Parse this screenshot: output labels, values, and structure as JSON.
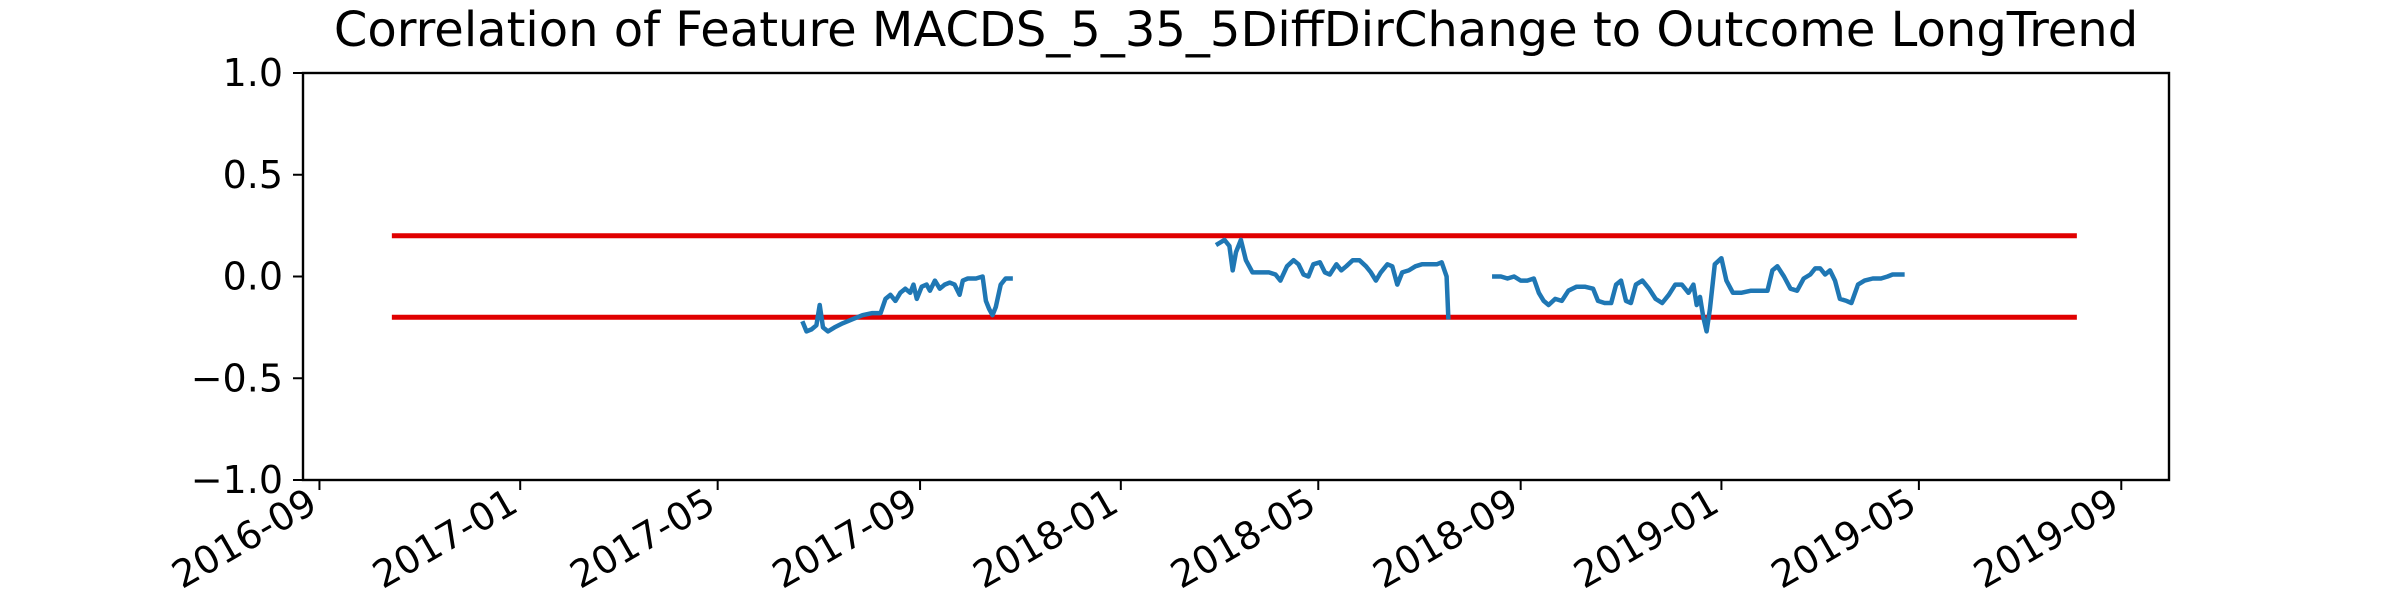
{
  "chart_data": {
    "type": "line",
    "title": "Correlation of Feature MACDS_5_35_5DiffDirChange to Outcome LongTrend",
    "xlabel": "",
    "ylabel": "",
    "ylim": [
      -1.0,
      1.0
    ],
    "xlim": [
      "2016-08-22",
      "2019-09-30"
    ],
    "y_ticks": [
      "1.0",
      "0.5",
      "0.0",
      "−0.5",
      "−1.0"
    ],
    "y_tick_values": [
      1.0,
      0.5,
      0.0,
      -0.5,
      -1.0
    ],
    "x_ticks": [
      "2016-09",
      "2017-01",
      "2017-05",
      "2017-09",
      "2018-01",
      "2018-05",
      "2018-09",
      "2019-01",
      "2019-05",
      "2019-09"
    ],
    "x_tick_dates": [
      "2016-09-01",
      "2017-01-01",
      "2017-05-01",
      "2017-09-01",
      "2018-01-01",
      "2018-05-01",
      "2018-09-01",
      "2019-01-01",
      "2019-05-01",
      "2019-09-01"
    ],
    "grid": false,
    "colors": {
      "series": "#1f77b4",
      "threshold": "#e00000"
    },
    "thresholds": [
      {
        "y": 0.2,
        "x_start": "2016-10-15",
        "x_end": "2019-08-05"
      },
      {
        "y": -0.2,
        "x_start": "2016-10-15",
        "x_end": "2019-08-05"
      }
    ],
    "series": [
      {
        "segments": [
          [
            [
              "2017-06-22",
              -0.23
            ],
            [
              "2017-06-24",
              -0.27
            ],
            [
              "2017-06-27",
              -0.26
            ],
            [
              "2017-06-30",
              -0.24
            ],
            [
              "2017-07-02",
              -0.14
            ],
            [
              "2017-07-04",
              -0.25
            ],
            [
              "2017-07-07",
              -0.27
            ],
            [
              "2017-07-11",
              -0.25
            ],
            [
              "2017-07-16",
              -0.23
            ],
            [
              "2017-07-22",
              -0.21
            ],
            [
              "2017-07-28",
              -0.19
            ],
            [
              "2017-08-03",
              -0.18
            ],
            [
              "2017-08-08",
              -0.18
            ],
            [
              "2017-08-11",
              -0.11
            ],
            [
              "2017-08-14",
              -0.09
            ],
            [
              "2017-08-17",
              -0.12
            ],
            [
              "2017-08-20",
              -0.08
            ],
            [
              "2017-08-23",
              -0.06
            ],
            [
              "2017-08-26",
              -0.08
            ],
            [
              "2017-08-28",
              -0.04
            ],
            [
              "2017-08-30",
              -0.11
            ],
            [
              "2017-09-02",
              -0.05
            ],
            [
              "2017-09-05",
              -0.04
            ],
            [
              "2017-09-07",
              -0.07
            ],
            [
              "2017-09-10",
              -0.02
            ],
            [
              "2017-09-13",
              -0.06
            ],
            [
              "2017-09-16",
              -0.04
            ],
            [
              "2017-09-19",
              -0.03
            ],
            [
              "2017-09-22",
              -0.04
            ],
            [
              "2017-09-25",
              -0.09
            ],
            [
              "2017-09-27",
              -0.02
            ],
            [
              "2017-09-30",
              -0.01
            ],
            [
              "2017-10-05",
              -0.01
            ],
            [
              "2017-10-09",
              0.0
            ],
            [
              "2017-10-11",
              -0.12
            ],
            [
              "2017-10-13",
              -0.16
            ],
            [
              "2017-10-15",
              -0.19
            ],
            [
              "2017-10-17",
              -0.15
            ],
            [
              "2017-10-20",
              -0.04
            ],
            [
              "2017-10-23",
              -0.01
            ],
            [
              "2017-10-26",
              -0.01
            ]
          ],
          [
            [
              "2018-03-01",
              0.16
            ],
            [
              "2018-03-05",
              0.18
            ],
            [
              "2018-03-08",
              0.15
            ],
            [
              "2018-03-10",
              0.03
            ],
            [
              "2018-03-12",
              0.12
            ],
            [
              "2018-03-15",
              0.18
            ],
            [
              "2018-03-18",
              0.08
            ],
            [
              "2018-03-22",
              0.02
            ],
            [
              "2018-03-27",
              0.02
            ],
            [
              "2018-04-01",
              0.02
            ],
            [
              "2018-04-05",
              0.01
            ],
            [
              "2018-04-08",
              -0.02
            ],
            [
              "2018-04-12",
              0.05
            ],
            [
              "2018-04-16",
              0.08
            ],
            [
              "2018-04-19",
              0.06
            ],
            [
              "2018-04-22",
              0.01
            ],
            [
              "2018-04-25",
              0.0
            ],
            [
              "2018-04-28",
              0.06
            ],
            [
              "2018-05-02",
              0.07
            ],
            [
              "2018-05-05",
              0.02
            ],
            [
              "2018-05-08",
              0.01
            ],
            [
              "2018-05-12",
              0.06
            ],
            [
              "2018-05-15",
              0.03
            ],
            [
              "2018-05-18",
              0.05
            ],
            [
              "2018-05-22",
              0.08
            ],
            [
              "2018-05-26",
              0.08
            ],
            [
              "2018-05-30",
              0.05
            ],
            [
              "2018-06-02",
              0.02
            ],
            [
              "2018-06-05",
              -0.02
            ],
            [
              "2018-06-08",
              0.02
            ],
            [
              "2018-06-12",
              0.06
            ],
            [
              "2018-06-15",
              0.05
            ],
            [
              "2018-06-18",
              -0.04
            ],
            [
              "2018-06-21",
              0.02
            ],
            [
              "2018-06-25",
              0.03
            ],
            [
              "2018-06-29",
              0.05
            ],
            [
              "2018-07-03",
              0.06
            ],
            [
              "2018-07-08",
              0.06
            ],
            [
              "2018-07-12",
              0.06
            ],
            [
              "2018-07-15",
              0.07
            ],
            [
              "2018-07-18",
              0.0
            ],
            [
              "2018-07-19",
              -0.2
            ]
          ],
          [
            [
              "2018-08-16",
              0.0
            ],
            [
              "2018-08-20",
              0.0
            ],
            [
              "2018-08-24",
              -0.01
            ],
            [
              "2018-08-28",
              0.0
            ],
            [
              "2018-09-01",
              -0.02
            ],
            [
              "2018-09-05",
              -0.02
            ],
            [
              "2018-09-09",
              -0.01
            ],
            [
              "2018-09-12",
              -0.08
            ],
            [
              "2018-09-15",
              -0.12
            ],
            [
              "2018-09-18",
              -0.14
            ],
            [
              "2018-09-22",
              -0.11
            ],
            [
              "2018-09-26",
              -0.12
            ],
            [
              "2018-09-30",
              -0.07
            ],
            [
              "2018-10-05",
              -0.05
            ],
            [
              "2018-10-10",
              -0.05
            ],
            [
              "2018-10-15",
              -0.06
            ],
            [
              "2018-10-18",
              -0.12
            ],
            [
              "2018-10-22",
              -0.13
            ],
            [
              "2018-10-26",
              -0.13
            ],
            [
              "2018-10-29",
              -0.04
            ],
            [
              "2018-11-01",
              -0.02
            ],
            [
              "2018-11-04",
              -0.12
            ],
            [
              "2018-11-07",
              -0.13
            ],
            [
              "2018-11-10",
              -0.04
            ],
            [
              "2018-11-14",
              -0.02
            ],
            [
              "2018-11-18",
              -0.06
            ],
            [
              "2018-11-22",
              -0.11
            ],
            [
              "2018-11-26",
              -0.13
            ],
            [
              "2018-11-30",
              -0.09
            ],
            [
              "2018-12-04",
              -0.04
            ],
            [
              "2018-12-08",
              -0.04
            ],
            [
              "2018-12-12",
              -0.08
            ],
            [
              "2018-12-15",
              -0.04
            ],
            [
              "2018-12-17",
              -0.14
            ],
            [
              "2018-12-19",
              -0.1
            ],
            [
              "2018-12-21",
              -0.2
            ],
            [
              "2018-12-23",
              -0.27
            ],
            [
              "2018-12-25",
              -0.16
            ],
            [
              "2018-12-28",
              0.06
            ],
            [
              "2019-01-01",
              0.09
            ],
            [
              "2019-01-04",
              -0.02
            ],
            [
              "2019-01-08",
              -0.08
            ],
            [
              "2019-01-13",
              -0.08
            ],
            [
              "2019-01-19",
              -0.07
            ],
            [
              "2019-01-25",
              -0.07
            ],
            [
              "2019-01-29",
              -0.07
            ],
            [
              "2019-02-01",
              0.03
            ],
            [
              "2019-02-04",
              0.05
            ],
            [
              "2019-02-08",
              0.0
            ],
            [
              "2019-02-12",
              -0.06
            ],
            [
              "2019-02-16",
              -0.07
            ],
            [
              "2019-02-20",
              -0.01
            ],
            [
              "2019-02-24",
              0.01
            ],
            [
              "2019-02-27",
              0.04
            ],
            [
              "2019-03-02",
              0.04
            ],
            [
              "2019-03-05",
              0.01
            ],
            [
              "2019-03-08",
              0.03
            ],
            [
              "2019-03-11",
              -0.02
            ],
            [
              "2019-03-14",
              -0.11
            ],
            [
              "2019-03-18",
              -0.12
            ],
            [
              "2019-03-21",
              -0.13
            ],
            [
              "2019-03-25",
              -0.04
            ],
            [
              "2019-03-29",
              -0.02
            ],
            [
              "2019-04-03",
              -0.01
            ],
            [
              "2019-04-08",
              -0.01
            ],
            [
              "2019-04-12",
              0.0
            ],
            [
              "2019-04-15",
              0.01
            ],
            [
              "2019-04-18",
              0.01
            ],
            [
              "2019-04-21",
              0.01
            ]
          ]
        ]
      }
    ]
  }
}
